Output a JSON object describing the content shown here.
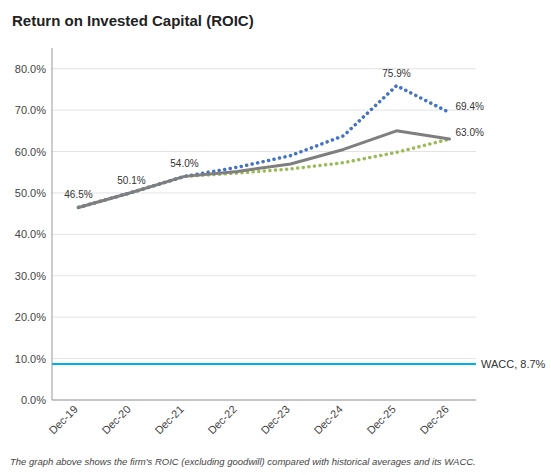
{
  "chart_data": {
    "type": "line",
    "title": "Return on Invested Capital (ROIC)",
    "footnote": "The graph above shows the firm's ROIC (excluding goodwill) compared with historical averages and its WACC.",
    "categories": [
      "Dec-19",
      "Dec-20",
      "Dec-21",
      "Dec-22",
      "Dec-23",
      "Dec-24",
      "Dec-25",
      "Dec-26"
    ],
    "series": [
      {
        "color": "#9BBB59",
        "line_style": "dotted",
        "values": [
          0.465,
          0.501,
          0.54,
          0.548,
          0.558,
          0.573,
          0.598,
          0.63
        ]
      },
      {
        "color": "#4472C4",
        "line_style": "dotted",
        "values": [
          0.465,
          0.501,
          0.54,
          0.562,
          0.59,
          0.638,
          0.759,
          0.694
        ]
      },
      {
        "color": "#7F7F7F",
        "line_style": "solid",
        "values": [
          0.465,
          0.501,
          0.54,
          0.552,
          0.57,
          0.605,
          0.65,
          0.63
        ]
      }
    ],
    "reference_lines": [
      {
        "value": 0.087,
        "label": "WACC, 8.7%",
        "color": "#00B0F0"
      }
    ],
    "ylim": [
      0.0,
      0.85
    ],
    "yticks": [
      {
        "value": 0.0,
        "label": "0.0%"
      },
      {
        "value": 0.1,
        "label": "10.0%"
      },
      {
        "value": 0.2,
        "label": "20.0%"
      },
      {
        "value": 0.3,
        "label": "30.0%"
      },
      {
        "value": 0.4,
        "label": "40.0%"
      },
      {
        "value": 0.5,
        "label": "50.0%"
      },
      {
        "value": 0.6,
        "label": "60.0%"
      },
      {
        "value": 0.7,
        "label": "70.0%"
      },
      {
        "value": 0.8,
        "label": "80.0%"
      }
    ],
    "grid": true,
    "annotations": [
      {
        "x": "Dec-19",
        "y": 0.465,
        "text": "46.5%"
      },
      {
        "x": "Dec-20",
        "y": 0.501,
        "text": "50.1%"
      },
      {
        "x": "Dec-21",
        "y": 0.54,
        "text": "54.0%"
      },
      {
        "x": "Dec-25",
        "y": 0.759,
        "text": "75.9%"
      },
      {
        "x": "Dec-26",
        "y": 0.694,
        "text": "69.4%"
      },
      {
        "x": "Dec-26",
        "y": 0.63,
        "text": "63.0%"
      }
    ]
  }
}
